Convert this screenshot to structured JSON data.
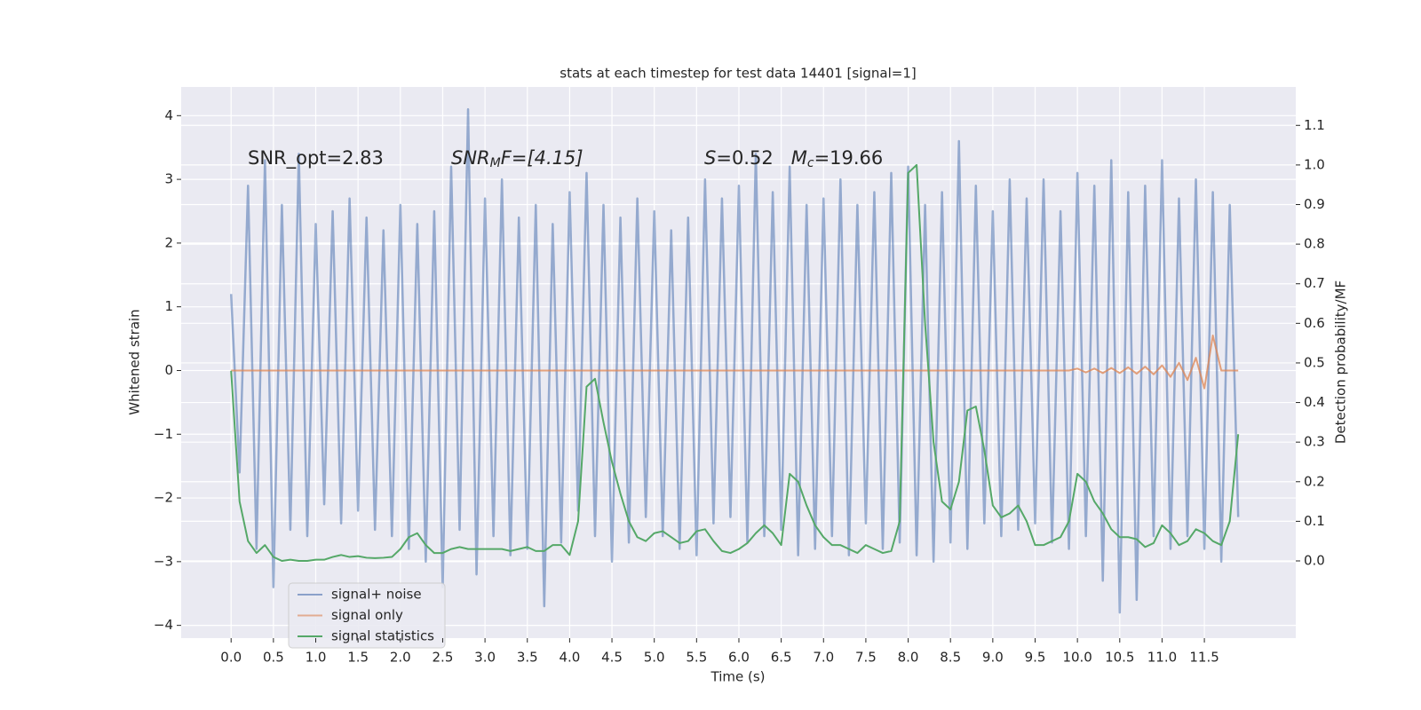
{
  "chart_data": {
    "type": "line",
    "title": "stats at each timestep for test data 14401 [signal=1]",
    "x_label": "Time (s)",
    "y_label": "Whitened strain",
    "y2_label": "Detection probability/MF",
    "annotations": [
      [
        "SNR_opt=2.83"
      ],
      [
        "SNR",
        "M",
        "F=[4.15]"
      ],
      [
        "S",
        "=0.52   ",
        "M",
        "c",
        "=19.66"
      ]
    ],
    "grid": true,
    "legend": "lower left",
    "xlim": [
      -0.59,
      12.58
    ],
    "ylim": [
      -4.2,
      4.45
    ],
    "y2lim": [
      -0.195,
      1.197
    ],
    "xticks": [
      {
        "value": 0,
        "label": "0.0"
      },
      0.5,
      {
        "value": 1,
        "label": "1.0"
      },
      1.5,
      {
        "value": 2,
        "label": "2.0"
      },
      2.5,
      {
        "value": 3,
        "label": "3.0"
      },
      3.5,
      {
        "value": 4,
        "label": "4.0"
      },
      4.5,
      {
        "value": 5,
        "label": "5.0"
      },
      5.5,
      {
        "value": 6,
        "label": "6.0"
      },
      6.5,
      {
        "value": 7,
        "label": "7.0"
      },
      7.5,
      {
        "value": 8,
        "label": "8.0"
      },
      8.5,
      {
        "value": 9,
        "label": "9.0"
      },
      9.5,
      {
        "value": 10,
        "label": "10.0"
      },
      10.5,
      {
        "value": 11,
        "label": "11.0"
      },
      11.5
    ],
    "yticks": [
      {
        "value": -4,
        "label": "−4"
      },
      {
        "value": -3,
        "label": "−3"
      },
      {
        "value": -2,
        "label": "−2"
      },
      {
        "value": -1,
        "label": "−1"
      },
      0,
      1,
      2,
      3,
      4
    ],
    "y2ticks": [
      {
        "value": 0,
        "label": "0.0"
      },
      0.1,
      0.2,
      0.3,
      0.4,
      0.5,
      0.6,
      0.7,
      0.8,
      0.9,
      {
        "value": 1,
        "label": "1.0"
      },
      1.1
    ],
    "x": [
      0.0,
      0.1,
      0.2,
      0.3,
      0.4,
      0.5,
      0.6,
      0.7,
      0.8,
      0.9,
      1.0,
      1.1,
      1.2,
      1.3,
      1.4,
      1.5,
      1.6,
      1.7,
      1.8,
      1.9,
      2.0,
      2.1,
      2.2,
      2.3,
      2.4,
      2.5,
      2.6,
      2.7,
      2.8,
      2.9,
      3.0,
      3.1,
      3.2,
      3.3,
      3.4,
      3.5,
      3.6,
      3.7,
      3.8,
      3.9,
      4.0,
      4.1,
      4.2,
      4.3,
      4.4,
      4.5,
      4.6,
      4.7,
      4.8,
      4.9,
      5.0,
      5.1,
      5.2,
      5.3,
      5.4,
      5.5,
      5.6,
      5.7,
      5.8,
      5.9,
      6.0,
      6.1,
      6.2,
      6.3,
      6.4,
      6.5,
      6.6,
      6.7,
      6.8,
      6.9,
      7.0,
      7.1,
      7.2,
      7.3,
      7.4,
      7.5,
      7.6,
      7.7,
      7.8,
      7.9,
      8.0,
      8.1,
      8.2,
      8.3,
      8.4,
      8.5,
      8.6,
      8.7,
      8.8,
      8.9,
      9.0,
      9.1,
      9.2,
      9.3,
      9.4,
      9.5,
      9.6,
      9.7,
      9.8,
      9.9,
      10.0,
      10.1,
      10.2,
      10.3,
      10.4,
      10.5,
      10.6,
      10.7,
      10.8,
      10.9,
      11.0,
      11.1,
      11.2,
      11.3,
      11.4,
      11.5,
      11.6,
      11.7,
      11.8,
      11.9
    ],
    "series": [
      {
        "name": "signal+ noise",
        "color": "#4c72b0",
        "values": [
          1.2,
          -1.6,
          2.9,
          -2.8,
          3.3,
          -3.4,
          2.6,
          -2.5,
          3.4,
          -2.6,
          2.3,
          -2.1,
          2.5,
          -2.4,
          2.7,
          -2.2,
          2.4,
          -2.5,
          2.2,
          -2.6,
          2.6,
          -2.8,
          2.3,
          -3.0,
          2.5,
          -3.4,
          3.2,
          -2.5,
          4.1,
          -3.2,
          2.7,
          -2.6,
          3.0,
          -2.9,
          2.4,
          -2.8,
          2.6,
          -3.7,
          2.3,
          -2.7,
          2.8,
          -2.2,
          3.1,
          -2.6,
          2.6,
          -3.0,
          2.4,
          -2.7,
          2.7,
          -2.3,
          2.5,
          -2.6,
          2.2,
          -2.8,
          2.4,
          -2.9,
          3.0,
          -2.4,
          2.7,
          -2.3,
          2.9,
          -2.7,
          3.4,
          -2.6,
          2.8,
          -2.5,
          3.2,
          -2.9,
          2.6,
          -2.8,
          2.7,
          -2.6,
          3.0,
          -2.9,
          2.6,
          -2.4,
          2.8,
          -2.8,
          3.1,
          -2.7,
          3.2,
          -2.9,
          2.6,
          -3.0,
          2.8,
          -2.7,
          3.6,
          -2.8,
          2.9,
          -2.4,
          2.5,
          -2.6,
          3.0,
          -2.5,
          2.7,
          -2.4,
          3.0,
          -2.7,
          2.5,
          -2.8,
          3.1,
          -2.6,
          2.9,
          -3.3,
          3.3,
          -3.8,
          2.8,
          -3.6,
          2.9,
          -2.6,
          3.3,
          -2.8,
          2.7,
          -2.6,
          3.0,
          -2.8,
          2.8,
          -3.0,
          2.6,
          -2.3
        ]
      },
      {
        "name": "signal only",
        "color": "#dd8452",
        "values": [
          0,
          0,
          0,
          0,
          0,
          0,
          0,
          0,
          0,
          0,
          0,
          0,
          0,
          0,
          0,
          0,
          0,
          0,
          0,
          0,
          0,
          0,
          0,
          0,
          0,
          0,
          0,
          0,
          0,
          0,
          0,
          0,
          0,
          0,
          0,
          0,
          0,
          0,
          0,
          0,
          0,
          0,
          0,
          0,
          0,
          0,
          0,
          0,
          0,
          0,
          0,
          0,
          0,
          0,
          0,
          0,
          0,
          0,
          0,
          0,
          0,
          0,
          0,
          0,
          0,
          0,
          0,
          0,
          0,
          0,
          0,
          0,
          0,
          0,
          0,
          0,
          0,
          0,
          0,
          0,
          0,
          0,
          0,
          0,
          0,
          0,
          0,
          0,
          0,
          0,
          0,
          0,
          0,
          0,
          0,
          0,
          0,
          0,
          0,
          0,
          0.03,
          -0.03,
          0.03,
          -0.04,
          0.04,
          -0.04,
          0.05,
          -0.05,
          0.06,
          -0.06,
          0.08,
          -0.1,
          0.12,
          -0.15,
          0.2,
          -0.28,
          0.55,
          0,
          0,
          0
        ]
      },
      {
        "name": "signal statistics",
        "color": "#55a868",
        "axis": "y2",
        "values": [
          0.48,
          0.15,
          0.05,
          0.02,
          0.04,
          0.01,
          0.0,
          0.003,
          0.0,
          0.0,
          0.003,
          0.003,
          0.01,
          0.015,
          0.01,
          0.012,
          0.008,
          0.007,
          0.008,
          0.01,
          0.03,
          0.06,
          0.07,
          0.04,
          0.02,
          0.02,
          0.03,
          0.035,
          0.03,
          0.03,
          0.03,
          0.03,
          0.03,
          0.025,
          0.03,
          0.035,
          0.025,
          0.025,
          0.04,
          0.04,
          0.015,
          0.1,
          0.44,
          0.46,
          0.35,
          0.25,
          0.17,
          0.1,
          0.06,
          0.05,
          0.07,
          0.075,
          0.06,
          0.045,
          0.05,
          0.075,
          0.08,
          0.05,
          0.025,
          0.02,
          0.03,
          0.045,
          0.07,
          0.09,
          0.07,
          0.04,
          0.22,
          0.2,
          0.14,
          0.09,
          0.06,
          0.04,
          0.04,
          0.03,
          0.02,
          0.04,
          0.03,
          0.02,
          0.025,
          0.1,
          0.98,
          1.0,
          0.6,
          0.3,
          0.15,
          0.13,
          0.2,
          0.38,
          0.39,
          0.28,
          0.14,
          0.11,
          0.12,
          0.14,
          0.1,
          0.04,
          0.04,
          0.05,
          0.06,
          0.1,
          0.22,
          0.2,
          0.15,
          0.12,
          0.08,
          0.06,
          0.06,
          0.055,
          0.035,
          0.045,
          0.09,
          0.07,
          0.04,
          0.05,
          0.08,
          0.07,
          0.05,
          0.04,
          0.1,
          0.32
        ]
      }
    ]
  }
}
